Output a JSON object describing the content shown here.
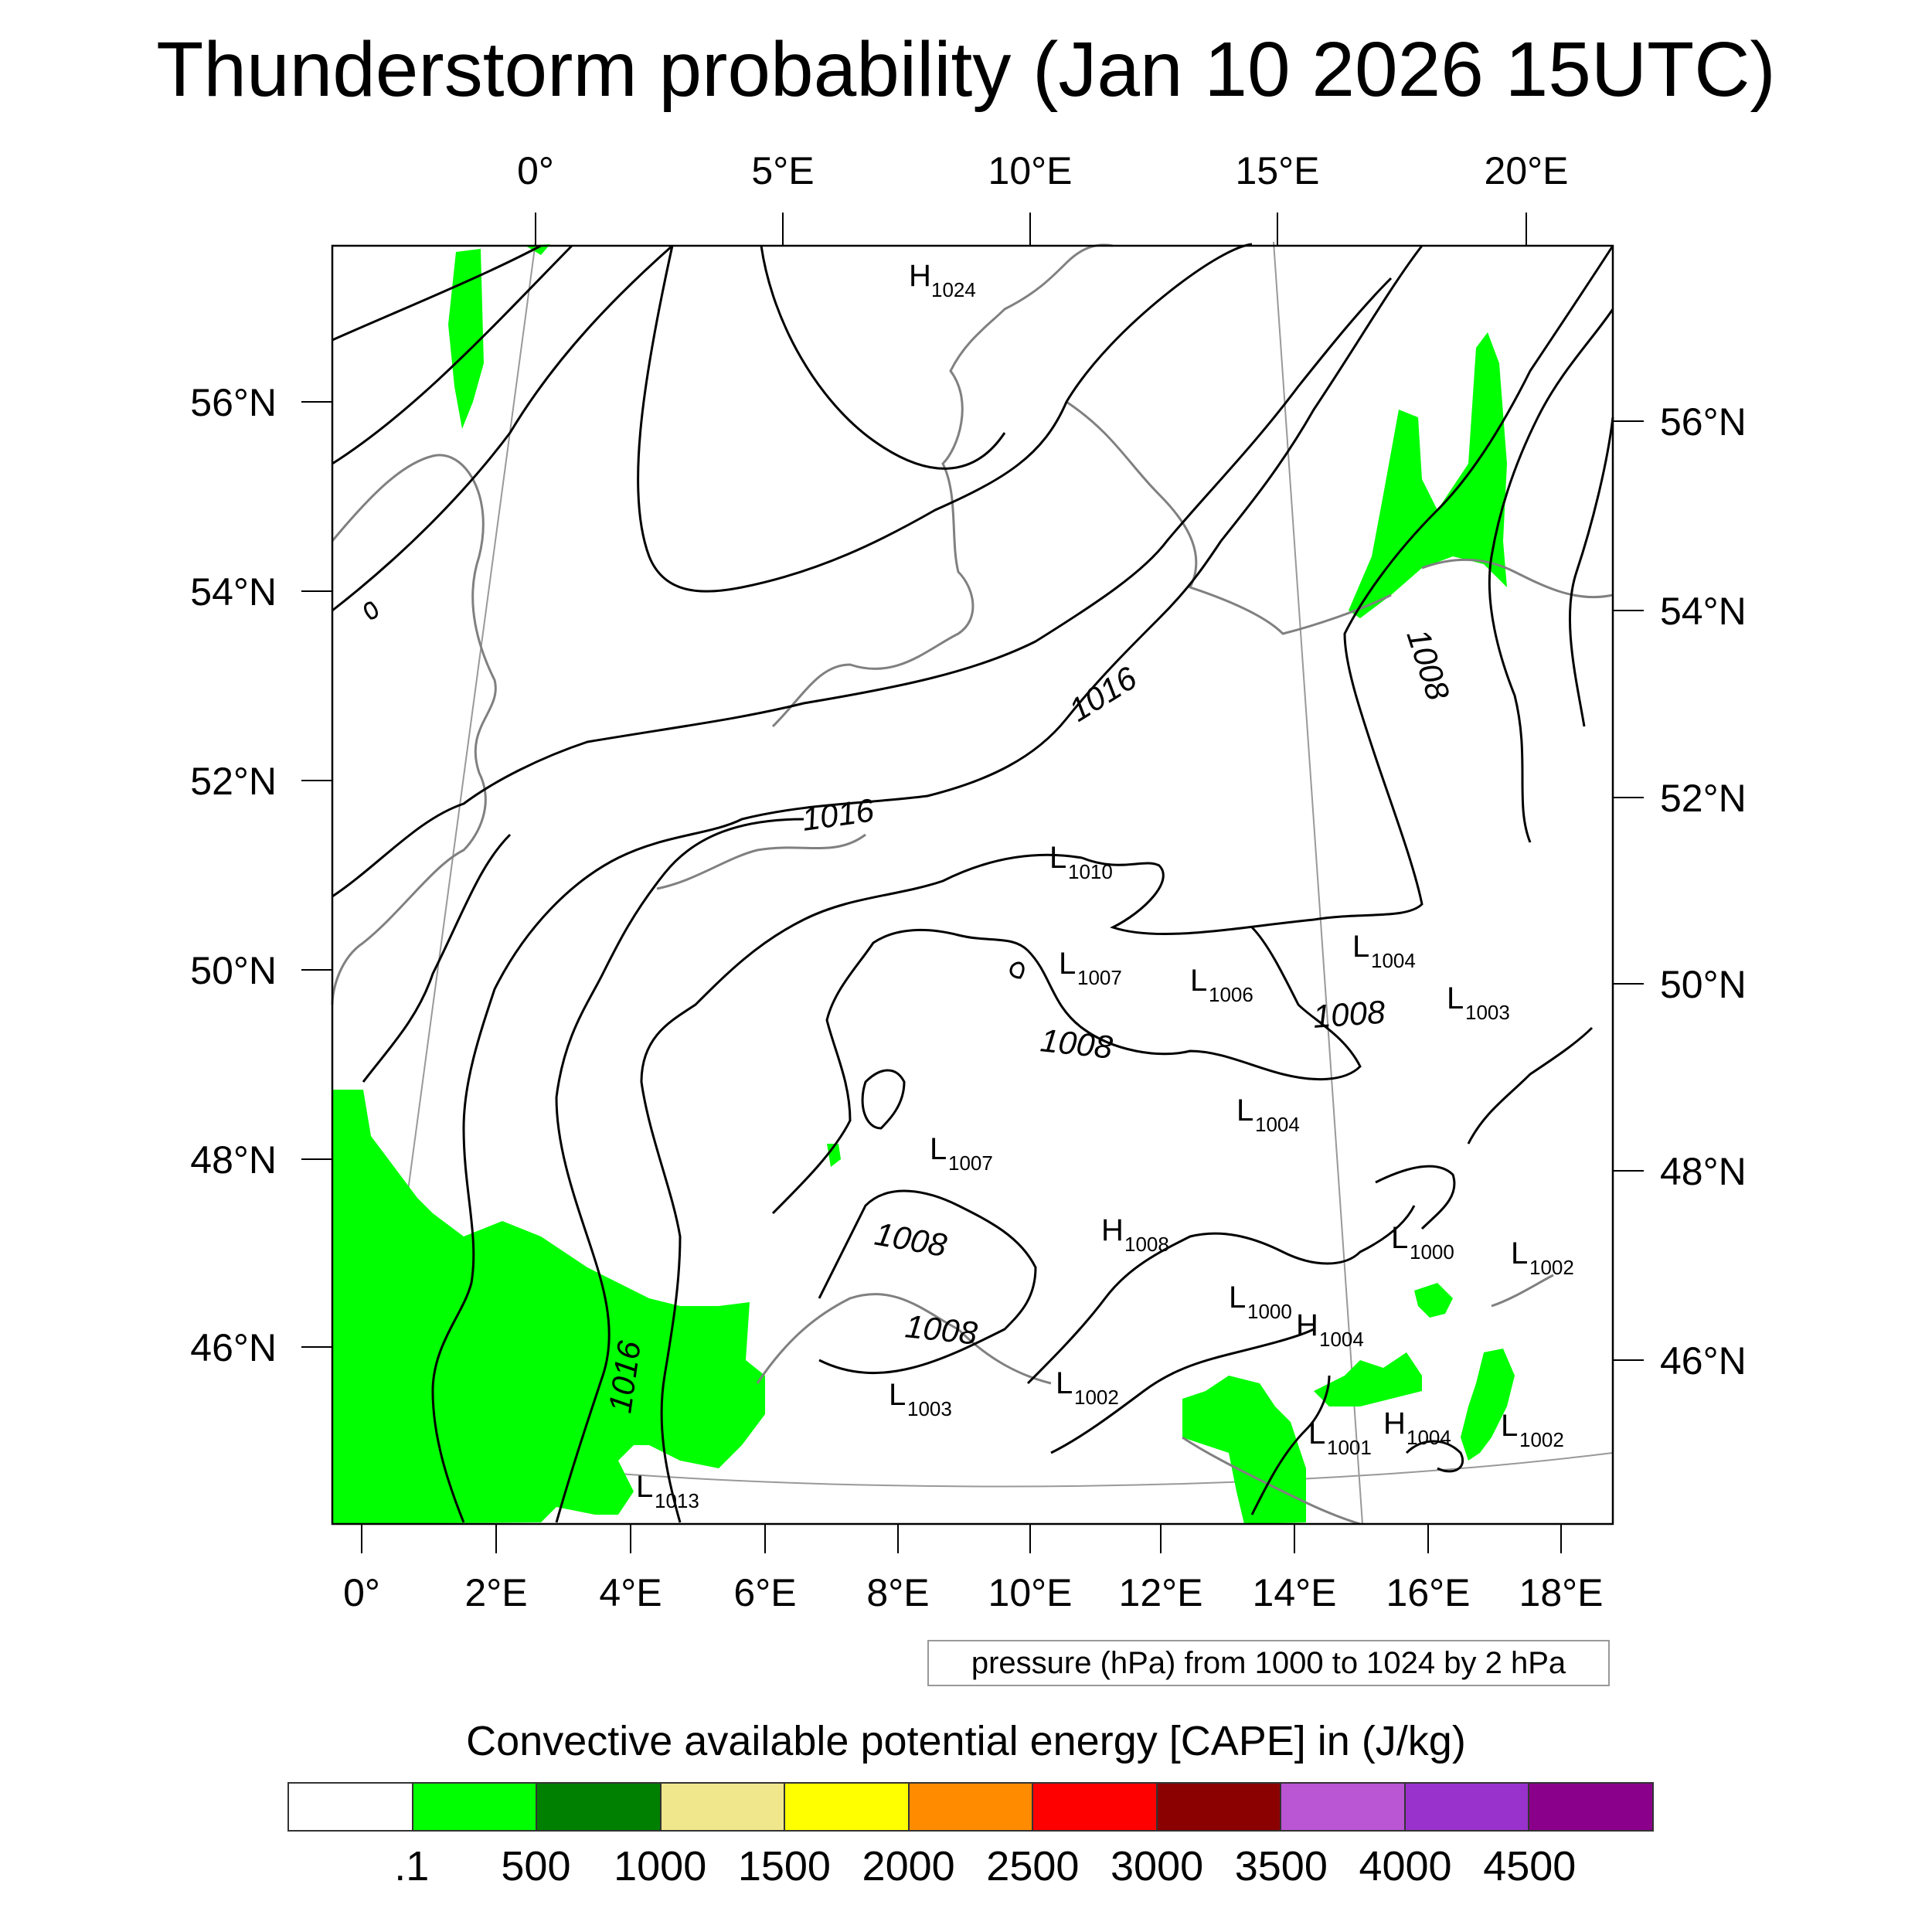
{
  "title": "Thunderstorm probability (Jan 10 2026 15UTC)",
  "top_lon_labels": [
    "0°",
    "5°E",
    "10°E",
    "15°E",
    "20°E"
  ],
  "bottom_lon_labels": [
    "0°",
    "2°E",
    "4°E",
    "6°E",
    "8°E",
    "10°E",
    "12°E",
    "14°E",
    "16°E",
    "18°E"
  ],
  "left_lat_labels": [
    "56°N",
    "54°N",
    "52°N",
    "50°N",
    "48°N",
    "46°N"
  ],
  "right_lat_labels": [
    "56°N",
    "54°N",
    "52°N",
    "50°N",
    "48°N",
    "46°N"
  ],
  "isobar_labels": [
    "1016",
    "1016",
    "1016",
    "1008",
    "1008",
    "1008",
    "1008",
    "1008"
  ],
  "pressure_centers": [
    {
      "letter": "H",
      "value": "1024"
    },
    {
      "letter": "L",
      "value": "1010"
    },
    {
      "letter": "L",
      "value": "1007"
    },
    {
      "letter": "L",
      "value": "1006"
    },
    {
      "letter": "L",
      "value": "1004"
    },
    {
      "letter": "L",
      "value": "1003"
    },
    {
      "letter": "L",
      "value": "1004"
    },
    {
      "letter": "L",
      "value": "1007"
    },
    {
      "letter": "H",
      "value": "1008"
    },
    {
      "letter": "L",
      "value": "1000"
    },
    {
      "letter": "L",
      "value": "1002"
    },
    {
      "letter": "L",
      "value": "1000"
    },
    {
      "letter": "H",
      "value": "1004"
    },
    {
      "letter": "L",
      "value": "1002"
    },
    {
      "letter": "L",
      "value": "1003"
    },
    {
      "letter": "L",
      "value": "1001"
    },
    {
      "letter": "H",
      "value": "1004"
    },
    {
      "letter": "L",
      "value": "1002"
    },
    {
      "letter": "L",
      "value": "1013"
    }
  ],
  "pressure_note": "pressure (hPa) from 1000 to 1024 by 2 hPa",
  "cape_title": "Convective available potential energy [CAPE] in (J/kg)",
  "colorbar": {
    "colors": [
      "#ffffff",
      "#00ff00",
      "#008000",
      "#f0e68c",
      "#ffff00",
      "#ff8c00",
      "#ff0000",
      "#8b0000",
      "#ba55d3",
      "#9932cc",
      "#8b008b"
    ],
    "labels": [
      ".1",
      "500",
      "1000",
      "1500",
      "2000",
      "2500",
      "3000",
      "3500",
      "4000",
      "4500"
    ]
  },
  "colors": {
    "cape_fill": "#00ff00",
    "isobar": "#000000",
    "coastline": "#808080"
  }
}
